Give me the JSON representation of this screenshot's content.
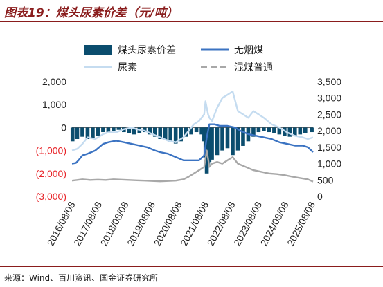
{
  "header": {
    "title": "图表19：煤头尿素价差（元/吨）"
  },
  "footer": {
    "source": "来源：Wind、百川资讯、国金证券研究所"
  },
  "colors": {
    "spread": "#0b4d6e",
    "anthracite": "#3b73c2",
    "urea": "#c5dcf0",
    "mixed_coal": "#a8a8a8",
    "neg_tick": "#e8252a",
    "tick": "#222222"
  },
  "chart_data": {
    "type": "bar+line",
    "title": "煤头尿素价差（元/吨）",
    "x_ticks": [
      "2016/08/08",
      "2017/08/08",
      "2018/08/08",
      "2019/08/08",
      "2020/08/08",
      "2021/08/08",
      "2022/08/08",
      "2023/08/08",
      "2024/08/08",
      "2025/08/08"
    ],
    "x_range": [
      2016.6,
      2025.9
    ],
    "y_left": {
      "range": [
        -3000,
        2000
      ],
      "ticks": [
        2000,
        1000,
        0,
        -1000,
        -2000,
        -3000
      ],
      "tick_labels": [
        "2,000",
        "1,000",
        "0",
        "(1,000)",
        "(2,000)",
        "(3,000)"
      ]
    },
    "y_right": {
      "range": [
        0,
        3500
      ],
      "ticks": [
        3500,
        3000,
        2500,
        2000,
        1500,
        1000,
        500,
        0
      ],
      "tick_labels": [
        "3,500",
        "3,000",
        "2,500",
        "2,000",
        "1,500",
        "1,000",
        "500",
        "0"
      ]
    },
    "legend": [
      "煤头尿素价差",
      "无烟煤",
      "尿素",
      "混煤普通"
    ],
    "legend_position": "top-right",
    "series": [
      {
        "name": "煤头尿素价差",
        "type": "bar",
        "axis": "left",
        "x": [
          2016.62,
          2016.8,
          2017.0,
          2017.2,
          2017.4,
          2017.6,
          2017.8,
          2018.0,
          2018.2,
          2018.4,
          2018.6,
          2018.8,
          2019.0,
          2019.2,
          2019.4,
          2019.6,
          2019.8,
          2020.0,
          2020.2,
          2020.4,
          2020.6,
          2020.8,
          2021.0,
          2021.2,
          2021.4,
          2021.6,
          2021.7,
          2021.75,
          2021.8,
          2021.85,
          2021.9,
          2022.0,
          2022.2,
          2022.4,
          2022.6,
          2022.8,
          2023.0,
          2023.2,
          2023.4,
          2023.6,
          2023.8,
          2024.0,
          2024.2,
          2024.4,
          2024.6,
          2024.8,
          2025.0,
          2025.2,
          2025.4,
          2025.6,
          2025.85
        ],
        "values": [
          -600,
          -500,
          -400,
          -500,
          -450,
          -350,
          -200,
          -250,
          -150,
          -100,
          -200,
          -250,
          -300,
          -250,
          -200,
          -300,
          -400,
          -500,
          -550,
          -650,
          -700,
          -600,
          -400,
          -300,
          -200,
          -300,
          -600,
          -1300,
          -2000,
          -1700,
          -1500,
          -1400,
          -1200,
          -1000,
          -900,
          -1200,
          -1000,
          -800,
          -600,
          -400,
          -200,
          -150,
          -200,
          -250,
          -300,
          -350,
          -400,
          -350,
          -300,
          -250,
          -200
        ]
      },
      {
        "name": "无烟煤",
        "type": "line",
        "axis": "right",
        "x": [
          2016.6,
          2016.75,
          2016.85,
          2017.0,
          2017.2,
          2017.5,
          2017.8,
          2018.0,
          2018.3,
          2018.6,
          2018.9,
          2019.2,
          2019.5,
          2019.8,
          2020.0,
          2020.3,
          2020.6,
          2020.9,
          2021.2,
          2021.5,
          2021.7,
          2021.8,
          2021.9,
          2022.1,
          2022.3,
          2022.6,
          2022.9,
          2023.1,
          2023.4,
          2023.7,
          2024.0,
          2024.3,
          2024.6,
          2024.9,
          2025.2,
          2025.5,
          2025.7,
          2025.9
        ],
        "values": [
          1000,
          1020,
          1100,
          1250,
          1300,
          1400,
          1600,
          1650,
          1700,
          1650,
          1600,
          1550,
          1500,
          1400,
          1350,
          1300,
          1200,
          1100,
          1100,
          1100,
          1250,
          1800,
          2200,
          2200,
          2150,
          2150,
          2100,
          2000,
          1900,
          1850,
          1800,
          1750,
          1650,
          1600,
          1550,
          1550,
          1500,
          1350
        ]
      },
      {
        "name": "尿素",
        "type": "line",
        "axis": "right",
        "x": [
          2016.6,
          2016.8,
          2017.0,
          2017.2,
          2017.5,
          2017.8,
          2018.0,
          2018.3,
          2018.6,
          2018.9,
          2019.1,
          2019.4,
          2019.7,
          2020.0,
          2020.3,
          2020.6,
          2020.9,
          2021.1,
          2021.3,
          2021.5,
          2021.7,
          2021.75,
          2021.8,
          2021.85,
          2021.9,
          2022.0,
          2022.2,
          2022.4,
          2022.6,
          2022.8,
          2023.0,
          2023.2,
          2023.4,
          2023.6,
          2023.8,
          2024.0,
          2024.3,
          2024.6,
          2024.9,
          2025.2,
          2025.5,
          2025.7,
          2025.9
        ],
        "values": [
          1400,
          1450,
          1600,
          1800,
          1750,
          1900,
          1950,
          1950,
          2050,
          2100,
          2050,
          2000,
          1900,
          1800,
          1700,
          1650,
          1800,
          2000,
          2200,
          2300,
          2500,
          2900,
          2700,
          2500,
          2400,
          2300,
          2700,
          3000,
          3100,
          3200,
          2600,
          2500,
          2400,
          2600,
          2500,
          2400,
          2200,
          2100,
          1950,
          1850,
          1800,
          1750,
          1800
        ]
      },
      {
        "name": "混煤普通",
        "type": "line",
        "axis": "right",
        "x": [
          2016.6,
          2016.8,
          2017.0,
          2017.3,
          2017.6,
          2017.9,
          2018.2,
          2018.5,
          2018.8,
          2019.1,
          2019.4,
          2019.7,
          2020.0,
          2020.3,
          2020.6,
          2020.9,
          2021.1,
          2021.3,
          2021.5,
          2021.7,
          2021.8,
          2021.9,
          2022.0,
          2022.2,
          2022.4,
          2022.6,
          2022.8,
          2023.0,
          2023.3,
          2023.6,
          2023.9,
          2024.2,
          2024.5,
          2024.8,
          2025.1,
          2025.4,
          2025.7,
          2025.9
        ],
        "values": [
          480,
          500,
          520,
          500,
          510,
          500,
          520,
          510,
          500,
          490,
          480,
          470,
          460,
          470,
          480,
          520,
          600,
          700,
          800,
          900,
          1400,
          900,
          1000,
          1050,
          1000,
          1100,
          1200,
          1000,
          900,
          800,
          750,
          700,
          680,
          650,
          600,
          560,
          520,
          450
        ]
      }
    ]
  }
}
